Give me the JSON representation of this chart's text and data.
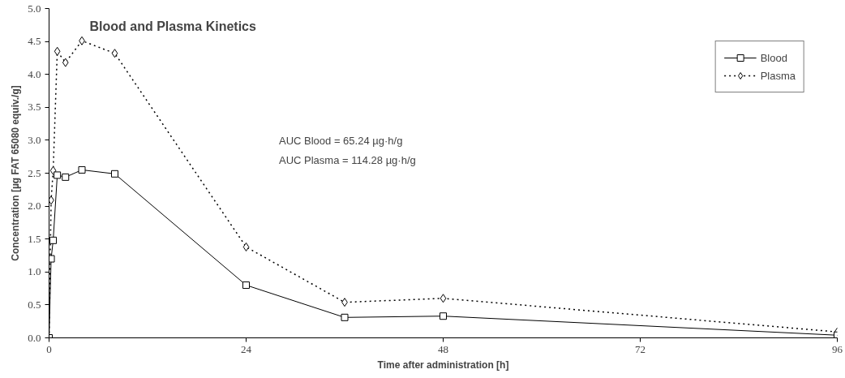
{
  "chart_data": {
    "type": "line",
    "title": "Blood and Plasma Kinetics",
    "xlabel": "Time after administration [h]",
    "ylabel": "Concentration [µg FAT 65080 equiv./g]",
    "x": [
      0,
      0.25,
      0.5,
      1,
      2,
      4,
      8,
      24,
      36,
      48,
      96
    ],
    "series": [
      {
        "name": "Blood",
        "color": "#000000",
        "marker": "square",
        "line_style": "solid",
        "values": [
          0,
          1.2,
          1.48,
          2.47,
          2.44,
          2.55,
          2.49,
          0.8,
          0.31,
          0.33,
          0.04
        ]
      },
      {
        "name": "Plasma",
        "color": "#000000",
        "marker": "diamond",
        "line_style": "dotted",
        "values": [
          0,
          2.09,
          2.54,
          4.35,
          4.18,
          4.51,
          4.32,
          1.38,
          0.54,
          0.6,
          0.09
        ]
      }
    ],
    "xlim": [
      0,
      96
    ],
    "xticks": [
      0,
      24,
      48,
      72,
      96
    ],
    "ylim": [
      0,
      5
    ],
    "yticks": [
      {
        "value": 0,
        "label": "0.0"
      },
      {
        "value": 0.5,
        "label": "0.5"
      },
      {
        "value": 1,
        "label": "1.0"
      },
      {
        "value": 1.5,
        "label": "1.5"
      },
      {
        "value": 2,
        "label": "2.0"
      },
      {
        "value": 2.5,
        "label": "2.5"
      },
      {
        "value": 3,
        "label": "3.0"
      },
      {
        "value": 3.5,
        "label": "3.5"
      },
      {
        "value": 4,
        "label": "4.0"
      },
      {
        "value": 4.5,
        "label": "4.5"
      },
      {
        "value": 5,
        "label": "5.0"
      }
    ],
    "grid": false,
    "legend": "top right",
    "annotations": [
      "AUC Blood = 65.24 µg·h/g",
      "AUC Plasma = 114.28 µg·h/g"
    ]
  }
}
